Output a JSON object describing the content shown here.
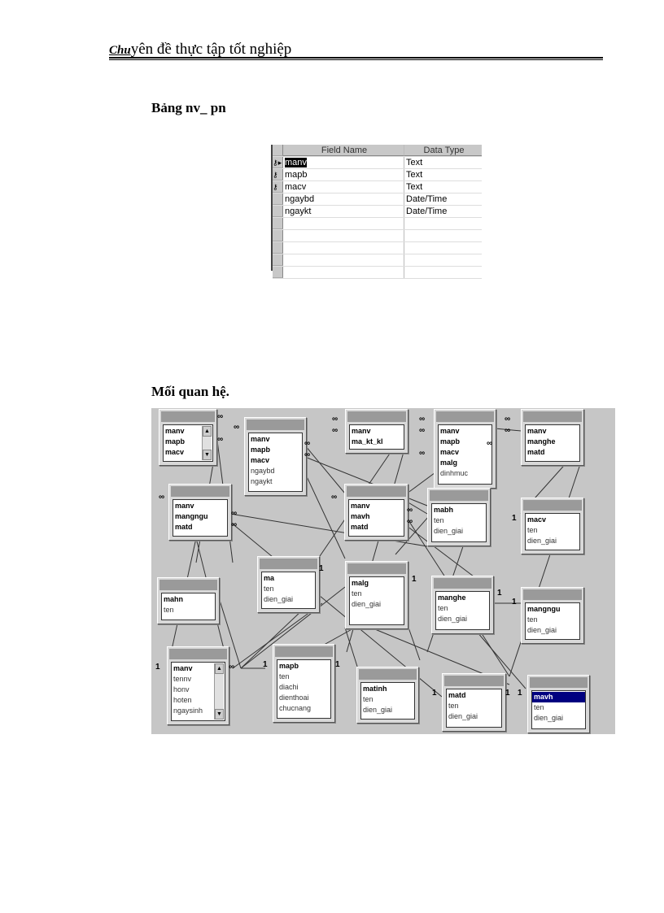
{
  "header": {
    "logo": "Chu",
    "title": "yên đề thực tập tốt nghiệp"
  },
  "section1": {
    "title": "Bảng nv_ pn"
  },
  "design": {
    "columns": [
      "Field Name",
      "Data Type"
    ],
    "rows": [
      {
        "key": true,
        "current": true,
        "field": "manv",
        "type": "Text"
      },
      {
        "key": true,
        "field": "mapb",
        "type": "Text"
      },
      {
        "key": true,
        "field": "macv",
        "type": "Text"
      },
      {
        "field": "ngaybd",
        "type": "Date/Time"
      },
      {
        "field": "ngaykt",
        "type": "Date/Time"
      },
      {
        "field": "",
        "type": ""
      },
      {
        "field": "",
        "type": ""
      },
      {
        "field": "",
        "type": ""
      },
      {
        "field": "",
        "type": ""
      },
      {
        "field": "",
        "type": ""
      }
    ]
  },
  "section2": {
    "title": "Mối quan hệ."
  },
  "relationships": {
    "symbols": {
      "many": "∞",
      "one": "1"
    },
    "selected_field": "mavh",
    "tables": [
      {
        "fields": [
          [
            "manv",
            1
          ],
          [
            "mapb",
            1
          ],
          [
            "macv",
            1
          ]
        ],
        "scroll": true
      },
      {
        "fields": [
          [
            "manv",
            1
          ],
          [
            "mapb",
            1
          ],
          [
            "macv",
            1
          ],
          [
            "ngaybd",
            0
          ],
          [
            "ngaykt",
            0
          ]
        ]
      },
      {
        "fields": [
          [
            "manv",
            1
          ],
          [
            "ma_kt_kl",
            1
          ]
        ]
      },
      {
        "fields": [
          [
            "manv",
            1
          ],
          [
            "mapb",
            1
          ],
          [
            "macv",
            1
          ],
          [
            "malg",
            1
          ],
          [
            "dinhmuc",
            0
          ]
        ]
      },
      {
        "fields": [
          [
            "manv",
            1
          ],
          [
            "manghe",
            1
          ],
          [
            "matd",
            1
          ]
        ]
      },
      {
        "fields": [
          [
            "manv",
            1
          ],
          [
            "mangngu",
            1
          ],
          [
            "matd",
            1
          ]
        ]
      },
      {
        "fields": [
          [
            "manv",
            1
          ],
          [
            "mavh",
            1
          ],
          [
            "matd",
            1
          ]
        ]
      },
      {
        "fields": [
          [
            "mabh",
            1
          ],
          [
            "ten",
            0
          ],
          [
            "dien_giai",
            0
          ]
        ]
      },
      {
        "fields": [
          [
            "macv",
            1
          ],
          [
            "ten",
            0
          ],
          [
            "dien_giai",
            0
          ]
        ]
      },
      {
        "fields": [
          [
            "ma",
            1
          ],
          [
            "ten",
            0
          ],
          [
            "dien_giai",
            0
          ]
        ]
      },
      {
        "fields": [
          [
            "malg",
            1
          ],
          [
            "ten",
            0
          ],
          [
            "dien_giai",
            0
          ]
        ]
      },
      {
        "fields": [
          [
            "manghe",
            1
          ],
          [
            "ten",
            0
          ],
          [
            "dien_giai",
            0
          ]
        ]
      },
      {
        "fields": [
          [
            "mangngu",
            1
          ],
          [
            "ten",
            0
          ],
          [
            "dien_giai",
            0
          ]
        ]
      },
      {
        "fields": [
          [
            "mahn",
            1
          ],
          [
            "ten",
            0
          ]
        ]
      },
      {
        "fields": [
          [
            "manv",
            1
          ],
          [
            "tennv",
            0
          ],
          [
            "honv",
            0
          ],
          [
            "hoten",
            0
          ],
          [
            "ngaysinh",
            0
          ]
        ],
        "scroll": true
      },
      {
        "fields": [
          [
            "mapb",
            1
          ],
          [
            "ten",
            0
          ],
          [
            "diachi",
            0
          ],
          [
            "dienthoai",
            0
          ],
          [
            "chucnang",
            0
          ]
        ]
      },
      {
        "fields": [
          [
            "matinh",
            1
          ],
          [
            "ten",
            0
          ],
          [
            "dien_giai",
            0
          ]
        ]
      },
      {
        "fields": [
          [
            "matd",
            1
          ],
          [
            "ten",
            0
          ],
          [
            "dien_giai",
            0
          ]
        ]
      },
      {
        "fields": [
          [
            "mavh",
            1
          ],
          [
            "ten",
            0
          ],
          [
            "dien_giai",
            0
          ]
        ]
      }
    ]
  }
}
